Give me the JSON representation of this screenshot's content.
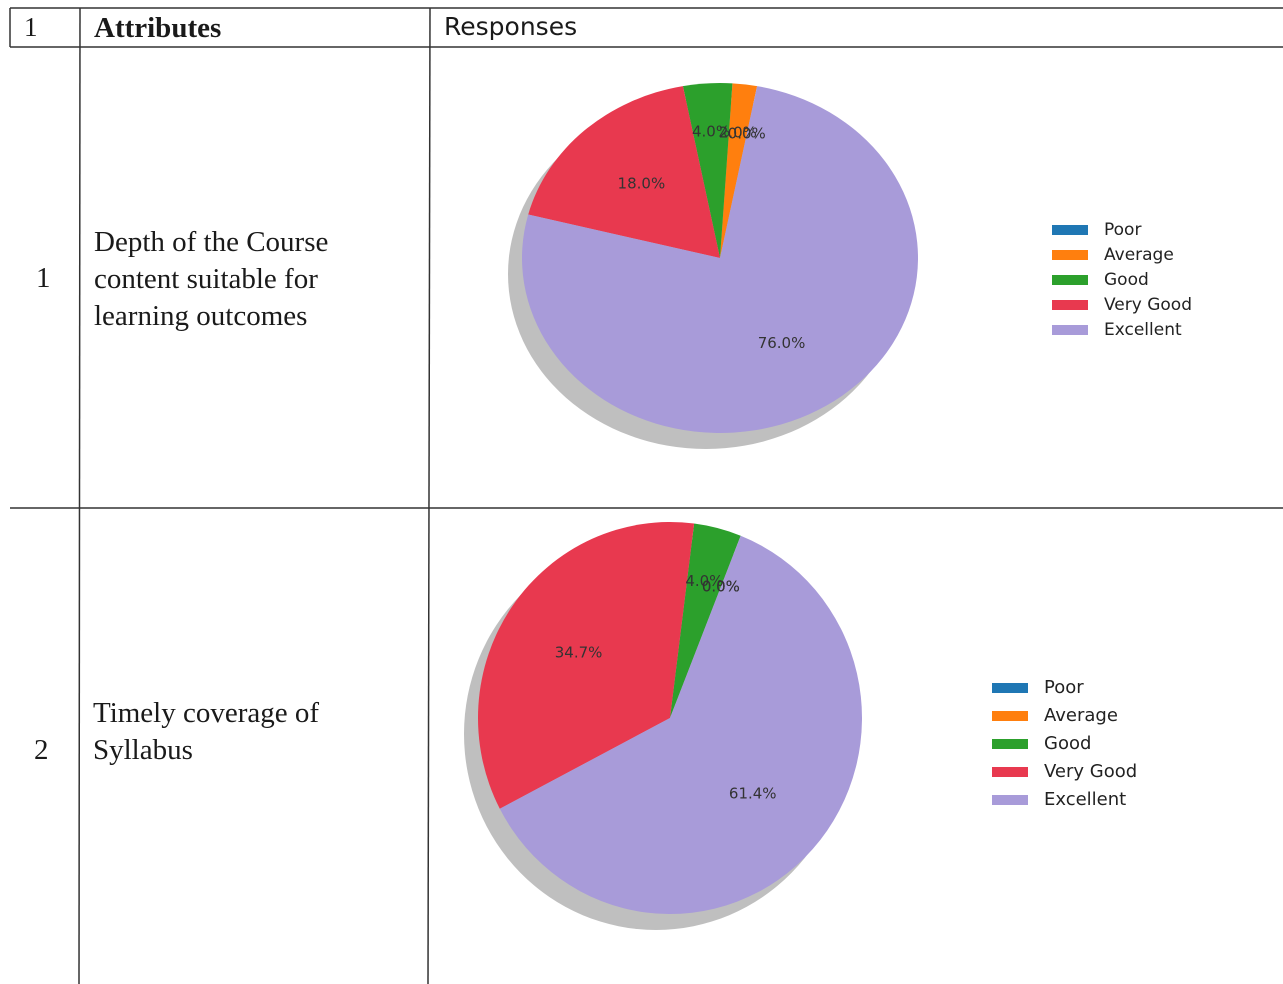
{
  "table": {
    "header": {
      "number": "1",
      "attributes": "Attributes",
      "responses": "Responses"
    },
    "rows": [
      {
        "number": "1",
        "attribute_lines": [
          "Depth of the Course",
          "content suitable for",
          "learning outcomes"
        ]
      },
      {
        "number": "2",
        "attribute_lines": [
          "Timely coverage of",
          "Syllabus"
        ]
      }
    ]
  },
  "chart_data": [
    {
      "type": "pie",
      "labels": [
        "Poor",
        "Average",
        "Good",
        "Very Good",
        "Excellent"
      ],
      "values": [
        0.0,
        2.0,
        4.0,
        18.0,
        76.0
      ],
      "slice_labels": [
        "0.0%",
        "2.0%",
        "4.0%",
        "18.0%",
        "76.0%"
      ],
      "colors": [
        "#1f77b4",
        "#ff7f0e",
        "#2ca02c",
        "#e8394f",
        "#a89bd9"
      ],
      "legend_position": "right",
      "shadow": true
    },
    {
      "type": "pie",
      "labels": [
        "Poor",
        "Average",
        "Good",
        "Very Good",
        "Excellent"
      ],
      "values": [
        0.0,
        0.0,
        4.0,
        34.7,
        61.4
      ],
      "slice_labels": [
        "0.0%",
        "0.0%",
        "4.0%",
        "34.7%",
        "61.4%"
      ],
      "colors": [
        "#1f77b4",
        "#ff7f0e",
        "#2ca02c",
        "#e8394f",
        "#a89bd9"
      ],
      "legend_position": "right",
      "shadow": true
    }
  ]
}
